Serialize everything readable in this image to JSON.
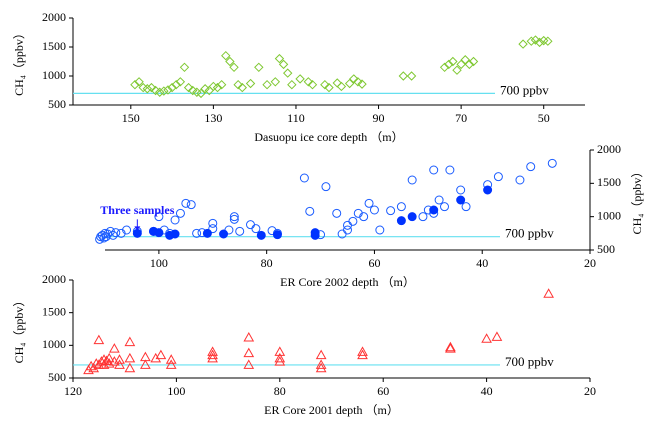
{
  "chart_data": [
    {
      "type": "scatter",
      "xlabel": "Dasuopu ice core depth （m）",
      "ylabel": "CH₄（ppbv）",
      "y_axis_side": "left",
      "xlim": [
        164,
        40
      ],
      "xticks": [
        150,
        130,
        110,
        90,
        70,
        50
      ],
      "ylim": [
        500,
        2000
      ],
      "yticks": [
        500,
        1000,
        1500,
        2000
      ],
      "reference": {
        "value": 700,
        "label": "700  ppbv",
        "color": "#66e0f0"
      },
      "series": [
        {
          "color": "#7fc832",
          "marker": "diamond",
          "filled": false,
          "x": [
            149,
            148,
            147,
            146,
            145,
            144,
            143,
            142,
            141,
            140,
            139,
            138,
            137,
            136,
            135,
            134,
            133,
            132,
            131,
            130,
            129,
            128,
            127,
            126,
            125,
            124,
            123,
            121,
            119,
            117,
            115,
            114,
            113,
            112,
            111,
            109,
            107,
            106,
            103,
            102,
            100,
            99,
            97,
            96,
            95,
            94,
            84,
            82,
            74,
            73,
            72,
            71,
            70,
            69,
            68,
            67,
            55,
            53,
            52,
            51,
            50,
            49
          ],
          "values": [
            850,
            900,
            800,
            780,
            800,
            750,
            720,
            740,
            760,
            800,
            850,
            900,
            1150,
            800,
            750,
            720,
            700,
            780,
            750,
            820,
            800,
            850,
            1350,
            1250,
            1150,
            850,
            800,
            870,
            1150,
            850,
            900,
            1300,
            1200,
            1050,
            850,
            950,
            900,
            850,
            850,
            800,
            880,
            820,
            870,
            950,
            900,
            860,
            1000,
            1000,
            1150,
            1200,
            1250,
            1100,
            1200,
            1280,
            1200,
            1250,
            1550,
            1600,
            1620,
            1580,
            1610,
            1600
          ]
        }
      ]
    },
    {
      "type": "scatter",
      "xlabel": "ER Core 2002 depth （m）",
      "ylabel": "CH₄（ppbv）",
      "y_axis_side": "right",
      "xlim": [
        110,
        20
      ],
      "xticks": [
        100,
        80,
        60,
        40,
        20
      ],
      "ylim": [
        500,
        2000
      ],
      "yticks": [
        500,
        1000,
        1500,
        2000
      ],
      "reference": {
        "value": 700,
        "label": "700  ppbv",
        "color": "#66e0f0"
      },
      "annotation": {
        "text": "Three samples",
        "x": 104,
        "y": 750,
        "color": "#1a1aff"
      },
      "series": [
        {
          "color": "#1a5cff",
          "marker": "circle",
          "filled": false,
          "x": [
            111,
            110.8,
            110.5,
            110.2,
            110,
            109.8,
            109.5,
            109,
            108.5,
            108,
            107,
            106,
            104,
            101,
            100,
            99,
            98,
            97,
            96,
            95,
            94,
            93,
            92,
            90,
            90,
            87,
            86,
            86,
            85,
            83,
            82,
            79,
            78,
            73,
            72,
            70,
            69,
            67,
            66,
            65,
            65,
            64,
            63,
            62,
            61,
            60,
            59,
            57,
            55,
            53,
            51,
            50,
            49,
            49,
            48,
            47,
            46,
            44,
            43,
            39,
            37,
            33,
            31,
            27
          ],
          "values": [
            660,
            700,
            720,
            680,
            750,
            700,
            740,
            780,
            720,
            760,
            750,
            800,
            780,
            780,
            1000,
            800,
            750,
            950,
            1050,
            1200,
            1180,
            750,
            760,
            900,
            820,
            800,
            960,
            1000,
            780,
            880,
            820,
            790,
            750,
            1580,
            1080,
            730,
            1450,
            1050,
            740,
            870,
            800,
            930,
            1050,
            1000,
            1200,
            1100,
            800,
            1090,
            1150,
            1550,
            1000,
            1100,
            1050,
            1700,
            1250,
            1150,
            1700,
            1400,
            1150,
            1480,
            1600,
            1550,
            1750,
            1800
          ]
        },
        {
          "color": "#0033ff",
          "marker": "circle",
          "filled": true,
          "x": [
            104,
            101,
            100,
            98,
            97,
            91,
            88,
            81,
            78,
            71,
            71,
            55,
            53,
            49,
            44,
            39
          ],
          "values": [
            750,
            780,
            760,
            720,
            740,
            750,
            740,
            720,
            730,
            720,
            760,
            940,
            1000,
            1100,
            1250,
            1400
          ]
        }
      ]
    },
    {
      "type": "scatter",
      "xlabel": "ER Core 2001 depth （m）",
      "ylabel": "CH₄（ppbv）",
      "y_axis_side": "left",
      "xlim": [
        120,
        20
      ],
      "xticks": [
        120,
        100,
        80,
        60,
        40,
        20
      ],
      "ylim": [
        500,
        2000
      ],
      "yticks": [
        500,
        1000,
        1500,
        2000
      ],
      "reference": {
        "value": 700,
        "label": "700  ppbv",
        "color": "#66e0f0"
      },
      "series": [
        {
          "color": "#ff3333",
          "marker": "triangle",
          "filled": false,
          "x": [
            117,
            116.5,
            116,
            115.5,
            115,
            115,
            114.5,
            114,
            114,
            113.5,
            113,
            113,
            112,
            112,
            111,
            111,
            109,
            109,
            109,
            106,
            106,
            104,
            103,
            101,
            101,
            93,
            93,
            93,
            86,
            86,
            86,
            80,
            80,
            80,
            72,
            72,
            72,
            64,
            64,
            47,
            47,
            40,
            38,
            28
          ],
          "values": [
            620,
            680,
            650,
            720,
            700,
            1080,
            750,
            780,
            700,
            760,
            800,
            720,
            750,
            950,
            780,
            700,
            650,
            1050,
            800,
            820,
            700,
            800,
            850,
            780,
            700,
            900,
            850,
            800,
            1120,
            880,
            700,
            900,
            800,
            750,
            850,
            700,
            650,
            900,
            850,
            970,
            950,
            1100,
            1130,
            1790
          ]
        }
      ]
    }
  ]
}
